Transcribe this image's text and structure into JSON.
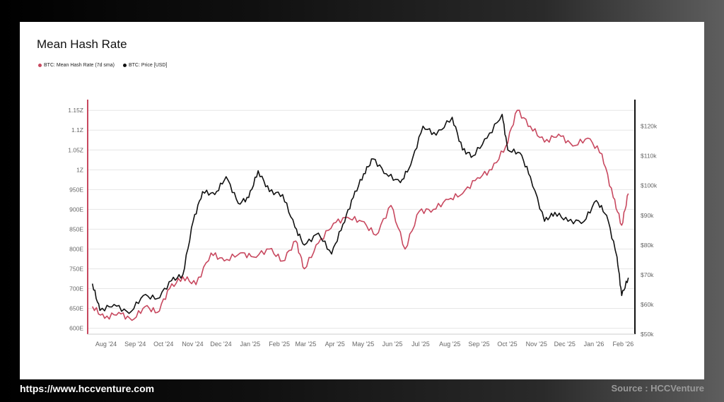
{
  "footer": {
    "url": "https://www.hccventure.com",
    "source": "Source : HCCVenture"
  },
  "colors": {
    "hashrate": "#c8485f",
    "price": "#111111",
    "grid": "#e6e6e6",
    "axis_text": "#666666"
  },
  "chart_data": {
    "type": "line",
    "title": "Mean Hash Rate",
    "legend_position": "top-left",
    "grid": true,
    "x_ticks": [
      "Aug '24",
      "Sep '24",
      "Oct '24",
      "Nov '24",
      "Dec '24",
      "Jan '25",
      "Feb '25",
      "Mar '25",
      "Apr '25",
      "May '25",
      "Jun '25",
      "Jul '25",
      "Aug '25",
      "Sep '25",
      "Oct '25",
      "Nov '25",
      "Dec '25",
      "Jan '26",
      "Feb '26"
    ],
    "y_left": {
      "unit": "EH/s",
      "range": [
        585,
        1170
      ],
      "ticks": [
        600,
        650,
        700,
        750,
        800,
        850,
        900,
        950,
        1000,
        1050,
        1100,
        1150
      ],
      "tick_labels": [
        "600E",
        "650E",
        "700E",
        "750E",
        "800E",
        "850E",
        "900E",
        "950E",
        "1Z",
        "1.05Z",
        "1.1Z",
        "1.15Z"
      ]
    },
    "y_right": {
      "unit": "USD",
      "range": [
        50000,
        128000
      ],
      "ticks": [
        50000,
        60000,
        70000,
        80000,
        90000,
        100000,
        110000,
        120000
      ],
      "tick_labels": [
        "$50k",
        "$60k",
        "$70k",
        "$80k",
        "$90k",
        "$100k",
        "$110k",
        "$120k"
      ]
    },
    "series": [
      {
        "name": "BTC: Mean Hash Rate (7d sma)",
        "axis": "left",
        "x": [
          "2024-07-28",
          "2024-08-10",
          "2024-08-25",
          "2024-09-08",
          "2024-09-22",
          "2024-10-05",
          "2024-10-18",
          "2024-11-01",
          "2024-11-15",
          "2024-12-01",
          "2024-12-15",
          "2025-01-01",
          "2025-01-15",
          "2025-02-01",
          "2025-02-15",
          "2025-03-01",
          "2025-03-10",
          "2025-03-25",
          "2025-04-10",
          "2025-04-25",
          "2025-05-10",
          "2025-05-25",
          "2025-06-10",
          "2025-06-25",
          "2025-07-10",
          "2025-07-25",
          "2025-08-10",
          "2025-08-25",
          "2025-09-10",
          "2025-09-25",
          "2025-10-10",
          "2025-10-22",
          "2025-11-05",
          "2025-11-20",
          "2025-12-05",
          "2025-12-20",
          "2026-01-05",
          "2026-01-20",
          "2026-02-01",
          "2026-02-10",
          "2026-02-17"
        ],
        "y": [
          655,
          625,
          640,
          620,
          655,
          640,
          700,
          730,
          710,
          790,
          770,
          790,
          780,
          800,
          770,
          820,
          750,
          815,
          865,
          880,
          870,
          835,
          910,
          800,
          895,
          900,
          925,
          940,
          980,
          1000,
          1060,
          1150,
          1110,
          1070,
          1090,
          1060,
          1080,
          1040,
          930,
          860,
          940
        ]
      },
      {
        "name": "BTC: Price [USD]",
        "axis": "right",
        "x": [
          "2024-07-28",
          "2024-08-05",
          "2024-08-20",
          "2024-09-05",
          "2024-09-20",
          "2024-10-05",
          "2024-10-20",
          "2024-11-01",
          "2024-11-12",
          "2024-11-22",
          "2024-12-05",
          "2024-12-17",
          "2024-12-30",
          "2025-01-10",
          "2025-01-20",
          "2025-02-01",
          "2025-02-15",
          "2025-02-28",
          "2025-03-10",
          "2025-03-25",
          "2025-04-08",
          "2025-04-20",
          "2025-05-01",
          "2025-05-12",
          "2025-05-22",
          "2025-06-05",
          "2025-06-20",
          "2025-07-01",
          "2025-07-14",
          "2025-07-28",
          "2025-08-14",
          "2025-08-25",
          "2025-09-05",
          "2025-09-20",
          "2025-10-06",
          "2025-10-12",
          "2025-10-25",
          "2025-11-05",
          "2025-11-20",
          "2025-12-01",
          "2025-12-15",
          "2026-01-01",
          "2026-01-14",
          "2026-01-25",
          "2026-02-05",
          "2026-02-10",
          "2026-02-17"
        ],
        "y": [
          67000,
          58000,
          60000,
          57000,
          63000,
          62000,
          68000,
          70000,
          88000,
          98000,
          97000,
          103000,
          94000,
          96000,
          105000,
          98000,
          97000,
          86000,
          80000,
          84000,
          77000,
          87000,
          96000,
          104000,
          109000,
          104000,
          101000,
          107000,
          120000,
          117000,
          123000,
          112000,
          110000,
          116000,
          124000,
          112000,
          111000,
          103000,
          88000,
          91000,
          88000,
          88000,
          95000,
          90000,
          76000,
          63000,
          69000
        ]
      }
    ]
  }
}
